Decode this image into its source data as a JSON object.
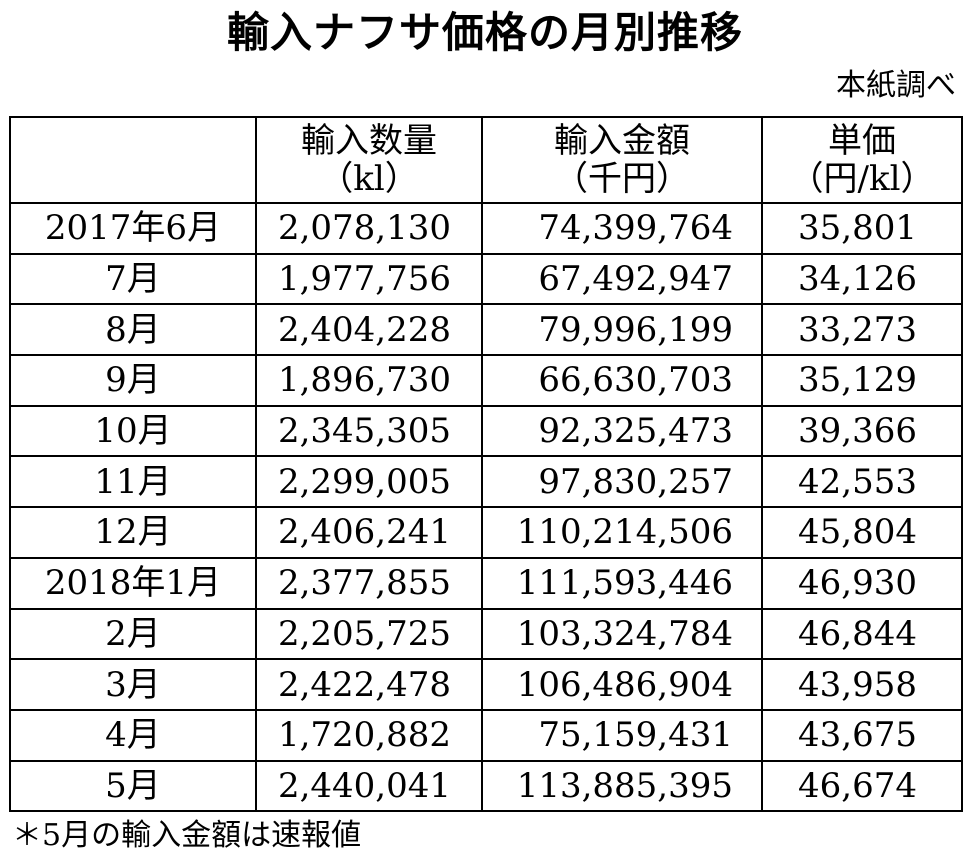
{
  "title": "輸入ナフサ価格の月別推移",
  "source": "本紙調べ",
  "table": {
    "headers": [
      {
        "line1": "",
        "line2": ""
      },
      {
        "line1": "輸入数量",
        "line2": "（kl）"
      },
      {
        "line1": "輸入金額",
        "line2": "（千円）"
      },
      {
        "line1": "単価",
        "line2": "（円/kl）"
      }
    ],
    "rows": [
      {
        "month": "2017年6月",
        "quantity": "2,078,130",
        "amount": "74,399,764",
        "unit_price": "35,801"
      },
      {
        "month": "7月",
        "quantity": "1,977,756",
        "amount": "67,492,947",
        "unit_price": "34,126"
      },
      {
        "month": "8月",
        "quantity": "2,404,228",
        "amount": "79,996,199",
        "unit_price": "33,273"
      },
      {
        "month": "9月",
        "quantity": "1,896,730",
        "amount": "66,630,703",
        "unit_price": "35,129"
      },
      {
        "month": "10月",
        "quantity": "2,345,305",
        "amount": "92,325,473",
        "unit_price": "39,366"
      },
      {
        "month": "11月",
        "quantity": "2,299,005",
        "amount": "97,830,257",
        "unit_price": "42,553"
      },
      {
        "month": "12月",
        "quantity": "2,406,241",
        "amount": "110,214,506",
        "unit_price": "45,804"
      },
      {
        "month": "2018年1月",
        "quantity": "2,377,855",
        "amount": "111,593,446",
        "unit_price": "46,930"
      },
      {
        "month": "2月",
        "quantity": "2,205,725",
        "amount": "103,324,784",
        "unit_price": "46,844"
      },
      {
        "month": "3月",
        "quantity": "2,422,478",
        "amount": "106,486,904",
        "unit_price": "43,958"
      },
      {
        "month": "4月",
        "quantity": "1,720,882",
        "amount": "75,159,431",
        "unit_price": "43,675"
      },
      {
        "month": "5月",
        "quantity": "2,440,041",
        "amount": "113,885,395",
        "unit_price": "46,674"
      }
    ]
  },
  "note": "＊5月の輸入金額は速報値"
}
